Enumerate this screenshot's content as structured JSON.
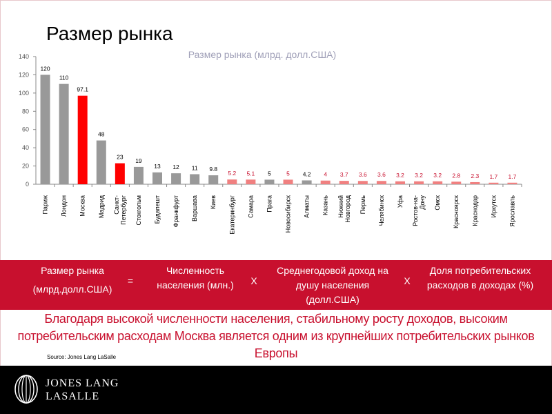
{
  "page": {
    "title": "Размер рынка"
  },
  "chart_data": {
    "type": "bar",
    "title": "Размер рынка (млрд. долл.США)",
    "ylim": [
      0,
      140
    ],
    "yticks": [
      0,
      20,
      40,
      60,
      80,
      100,
      120,
      140
    ],
    "grid": false,
    "categories": [
      "Париж",
      "Лондон",
      "Москва",
      "Мадрид",
      "Санкт-Петербург",
      "Стокгольм",
      "Будапешт",
      "Франкфурт",
      "Варшава",
      "Киев",
      "Екатеринбург",
      "Самара",
      "Прага",
      "Новосибирск",
      "Алматы",
      "Казань",
      "Нижний Новгород",
      "Пермь",
      "Челябинск",
      "Уфа",
      "Ростов-на-Дону",
      "Омск",
      "Красноярск",
      "Краснодар",
      "Иркутск",
      "Ярославль"
    ],
    "category_lines": [
      [
        "Париж"
      ],
      [
        "Лондон"
      ],
      [
        "Москва"
      ],
      [
        "Мадрид"
      ],
      [
        "Санкт-",
        "Петербург"
      ],
      [
        "Стокгольм"
      ],
      [
        "Будапешт"
      ],
      [
        "Франкфурт"
      ],
      [
        "Варшава"
      ],
      [
        "Киев"
      ],
      [
        "Екатеринбург"
      ],
      [
        "Самара"
      ],
      [
        "Прага"
      ],
      [
        "Новосибирск"
      ],
      [
        "Алматы"
      ],
      [
        "Казань"
      ],
      [
        "Нижний",
        "Новгород"
      ],
      [
        "Пермь"
      ],
      [
        "Челябинск"
      ],
      [
        "Уфа"
      ],
      [
        "Ростов-на-",
        "Дону"
      ],
      [
        "Омск"
      ],
      [
        "Красноярск"
      ],
      [
        "Краснодар"
      ],
      [
        "Иркутск"
      ],
      [
        "Ярославль"
      ]
    ],
    "values": [
      120,
      110,
      97.1,
      48,
      23,
      19,
      13,
      12,
      11,
      9.8,
      5.2,
      5.1,
      5,
      5,
      4.2,
      4,
      3.7,
      3.6,
      3.6,
      3.2,
      3.2,
      3.2,
      2.8,
      2.3,
      1.7,
      1.7
    ],
    "value_labels": [
      "120",
      "110",
      "97.1",
      "48",
      "23",
      "19",
      "13",
      "12",
      "11",
      "9.8",
      "5.2",
      "5.1",
      "5",
      "5",
      "4.2",
      "4",
      "3.7",
      "3.6",
      "3.6",
      "3.2",
      "3.2",
      "3.2",
      "2.8",
      "2.3",
      "1.7",
      "1.7"
    ],
    "bar_colors": [
      "#999999",
      "#999999",
      "#ff0000",
      "#999999",
      "#ff0000",
      "#999999",
      "#999999",
      "#999999",
      "#999999",
      "#999999",
      "#f08080",
      "#f08080",
      "#999999",
      "#f08080",
      "#999999",
      "#f08080",
      "#f08080",
      "#f08080",
      "#f08080",
      "#f08080",
      "#f08080",
      "#f08080",
      "#f08080",
      "#f08080",
      "#f08080",
      "#f08080"
    ],
    "value_label_colors": [
      "#000000",
      "#000000",
      "#000000",
      "#000000",
      "#000000",
      "#000000",
      "#000000",
      "#000000",
      "#000000",
      "#000000",
      "#c8102e",
      "#c8102e",
      "#000000",
      "#c8102e",
      "#000000",
      "#c8102e",
      "#c8102e",
      "#c8102e",
      "#c8102e",
      "#c8102e",
      "#c8102e",
      "#c8102e",
      "#c8102e",
      "#c8102e",
      "#c8102e",
      "#c8102e"
    ]
  },
  "formula": {
    "term1_line1": "Размер рынка",
    "term1_line2": "(млрд.долл.США)",
    "equals": "=",
    "term2": "Численность населения (млн.)",
    "times1": "X",
    "term3": "Среднегодовой доход на душу населения (долл.США)",
    "times2": "X",
    "term4": "Доля потребительских расходов в доходах (%)"
  },
  "conclusion": "Благодаря высокой численности населения, стабильному росту доходов, высоким потребительским расходам Москва является одним из крупнейших потребительских рынков Европы",
  "source": "Source: Jones Lang LaSalle",
  "footer": {
    "logo_line1": "JONES LANG",
    "logo_line2": "LASALLE"
  },
  "colors": {
    "accent": "#c8102e",
    "bar_default": "#999999",
    "bar_highlight": "#ff0000",
    "bar_russian_cities": "#f08080"
  }
}
